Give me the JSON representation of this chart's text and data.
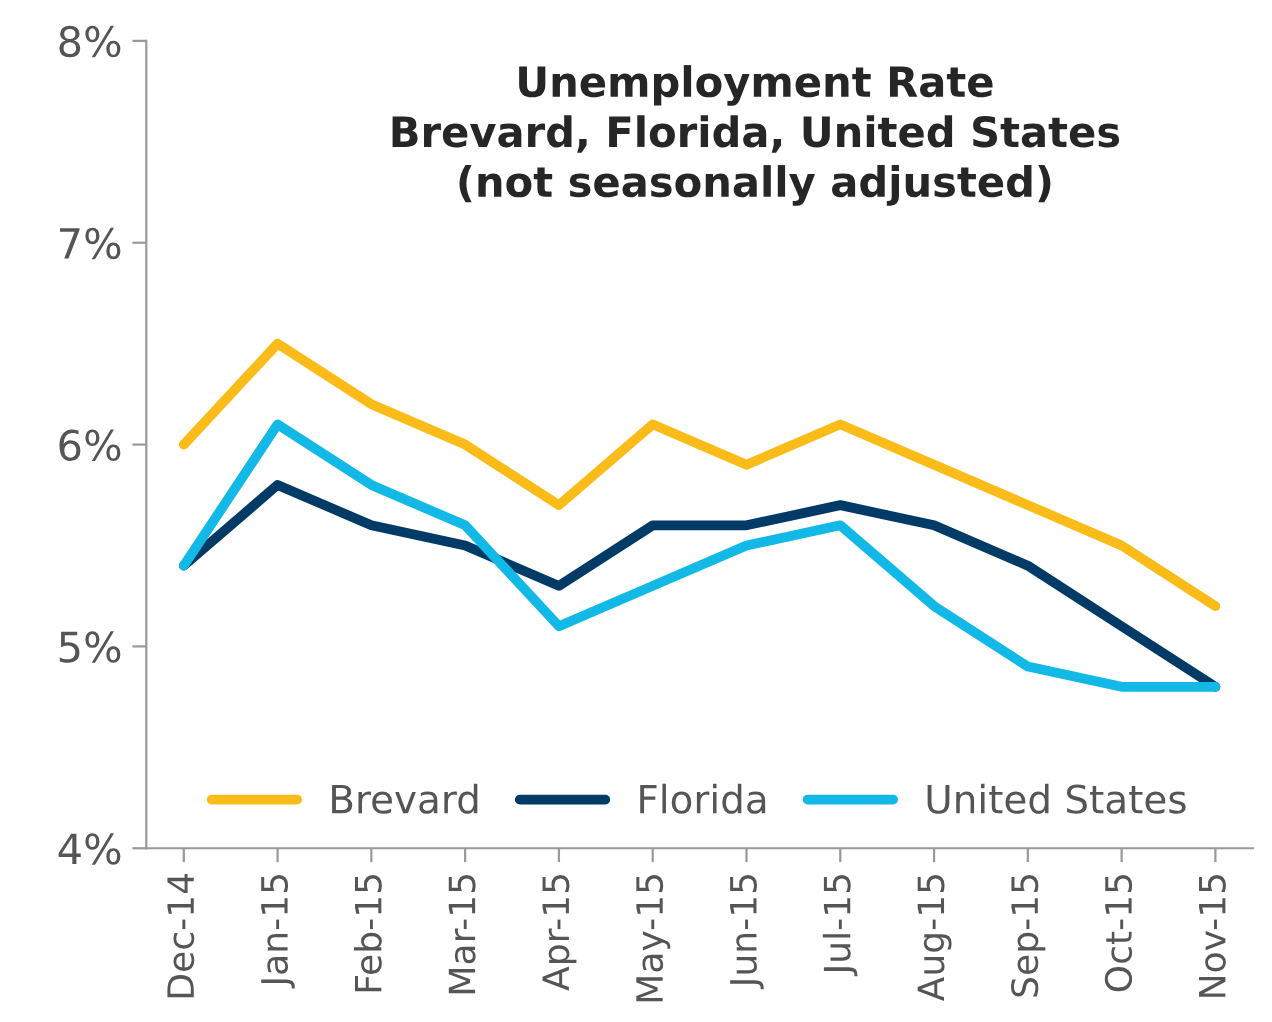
{
  "chart_data": {
    "type": "line",
    "title": "Unemployment Rate\nBrevard, Florida, United States\n(not seasonally adjusted)",
    "categories": [
      "Dec-14",
      "Jan-15",
      "Feb-15",
      "Mar-15",
      "Apr-15",
      "May-15",
      "Jun-15",
      "Jul-15",
      "Aug-15",
      "Sep-15",
      "Oct-15",
      "Nov-15"
    ],
    "series": [
      {
        "name": "Brevard",
        "color": "#fbbc1a",
        "values": [
          6.0,
          6.5,
          6.2,
          6.0,
          5.7,
          6.1,
          5.9,
          6.1,
          5.9,
          5.7,
          5.5,
          5.2
        ]
      },
      {
        "name": "Florida",
        "color": "#003a66",
        "values": [
          5.4,
          5.8,
          5.6,
          5.5,
          5.3,
          5.6,
          5.6,
          5.7,
          5.6,
          5.4,
          5.1,
          4.8
        ]
      },
      {
        "name": "United States",
        "color": "#12b9e6",
        "values": [
          5.4,
          6.1,
          5.8,
          5.6,
          5.1,
          5.3,
          5.5,
          5.6,
          5.2,
          4.9,
          4.8,
          4.8
        ]
      }
    ],
    "ylim": [
      4,
      8
    ],
    "yticks": [
      {
        "value": 4,
        "label": "4%"
      },
      {
        "value": 5,
        "label": "5%"
      },
      {
        "value": 6,
        "label": "6%"
      },
      {
        "value": 7,
        "label": "7%"
      },
      {
        "value": 8,
        "label": "8%"
      }
    ],
    "grid": false,
    "legend": "bottom",
    "marker": "none",
    "line_style": "solid"
  }
}
